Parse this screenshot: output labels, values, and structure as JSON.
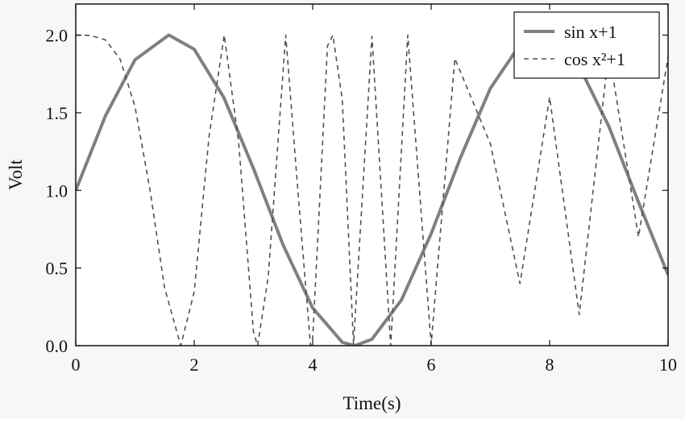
{
  "chart_data": {
    "type": "line",
    "title": "",
    "xlabel": "Time(s)",
    "ylabel": "Volt",
    "xlim": [
      0,
      10
    ],
    "ylim": [
      0,
      2.2
    ],
    "x_ticks": [
      0,
      2,
      4,
      6,
      8,
      10
    ],
    "y_ticks": [
      0.0,
      0.5,
      1.0,
      1.5,
      2.0
    ],
    "x_tick_labels": [
      "0",
      "2",
      "4",
      "6",
      "8",
      "10"
    ],
    "y_tick_labels": [
      "0.0",
      "0.5",
      "1.0",
      "1.5",
      "2.0"
    ],
    "grid": false,
    "legend_position": "top-right",
    "series": [
      {
        "name": "sin x+1",
        "style": "solid",
        "color": "#808080",
        "x": [
          0,
          0.5,
          1,
          1.5708,
          2,
          2.5,
          3,
          3.5,
          4,
          4.5,
          4.7124,
          5,
          5.5,
          6,
          6.5,
          7,
          7.5,
          7.854,
          8,
          8.5,
          9,
          9.5,
          10
        ],
        "y": [
          1.0,
          1.479,
          1.841,
          2.0,
          1.909,
          1.598,
          1.141,
          0.649,
          0.243,
          0.022,
          0.0,
          0.041,
          0.295,
          0.721,
          1.215,
          1.657,
          1.938,
          2.0,
          1.989,
          1.798,
          1.412,
          0.925,
          0.456
        ]
      },
      {
        "name": "cos x²+1",
        "style": "dashed",
        "color": "#505050",
        "x": [
          0,
          0.25,
          0.5,
          0.75,
          1.0,
          1.25,
          1.5,
          1.7725,
          2.0,
          2.25,
          2.5066,
          2.75,
          3.0,
          3.07,
          3.25,
          3.5449,
          3.75,
          3.9633,
          4.0,
          4.25,
          4.3416,
          4.5,
          4.6896,
          5.0,
          5.3173,
          5.605,
          6.0,
          6.4,
          7.0,
          7.5,
          8.0,
          8.5,
          9.0,
          9.5,
          10.0
        ],
        "y": [
          2.0,
          1.998,
          1.969,
          1.844,
          1.54,
          1.011,
          0.372,
          0.0,
          0.346,
          1.347,
          2.0,
          1.312,
          0.089,
          0.0,
          0.446,
          2.0,
          0.999,
          0.0,
          0.042,
          1.931,
          1.999,
          1.584,
          0.01,
          1.992,
          0.0,
          2.0,
          0.008,
          1.85,
          1.3,
          0.4,
          1.6,
          0.2,
          1.9,
          0.7,
          1.86
        ]
      }
    ]
  }
}
